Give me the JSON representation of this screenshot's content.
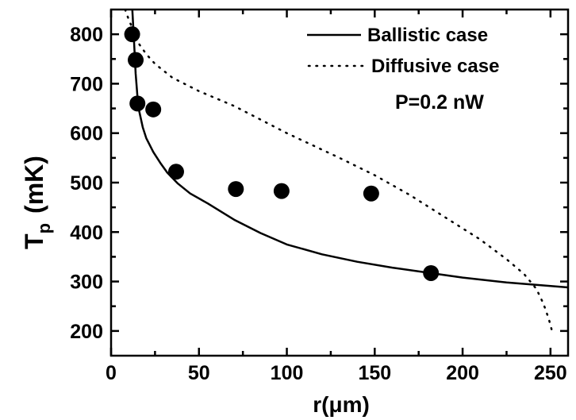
{
  "chart_data": {
    "type": "scatter",
    "xlabel_prefix": "r(",
    "xlabel_unit": "μm",
    "xlabel_suffix": ")",
    "ylabel_main": "T",
    "ylabel_sub": "p",
    "ylabel_unit": "(mK)",
    "xlim": [
      0,
      260
    ],
    "ylim": [
      150,
      850
    ],
    "xticks": [
      0,
      50,
      100,
      150,
      200,
      250
    ],
    "yticks": [
      200,
      300,
      400,
      500,
      600,
      700,
      800
    ],
    "grid": false,
    "legend_position": "top-right",
    "annotation": "P=0.2 nW",
    "series": [
      {
        "name": "Ballistic case",
        "style": "solid",
        "x": [
          12,
          13,
          14,
          15,
          16,
          18,
          20,
          24,
          28,
          32,
          38,
          45,
          55,
          70,
          85,
          100,
          120,
          140,
          160,
          180,
          200,
          225,
          260
        ],
        "y": [
          855,
          790,
          720,
          675,
          645,
          612,
          590,
          562,
          540,
          520,
          498,
          478,
          458,
          425,
          398,
          375,
          355,
          340,
          328,
          318,
          308,
          298,
          288
        ]
      },
      {
        "name": "Diffusive case",
        "style": "dotted",
        "x": [
          8,
          10,
          13,
          16,
          20,
          25,
          35,
          50,
          70,
          100,
          130,
          150,
          170,
          190,
          210,
          225,
          235,
          242,
          246,
          249,
          251
        ],
        "y": [
          850,
          830,
          805,
          780,
          760,
          740,
          712,
          685,
          655,
          600,
          550,
          515,
          475,
          430,
          385,
          345,
          315,
          285,
          255,
          225,
          198
        ]
      },
      {
        "name": "",
        "style": "markers",
        "x": [
          12,
          14,
          15,
          24,
          37,
          71,
          97,
          148,
          182
        ],
        "y": [
          800,
          748,
          660,
          648,
          522,
          487,
          483,
          478,
          317
        ]
      }
    ]
  }
}
